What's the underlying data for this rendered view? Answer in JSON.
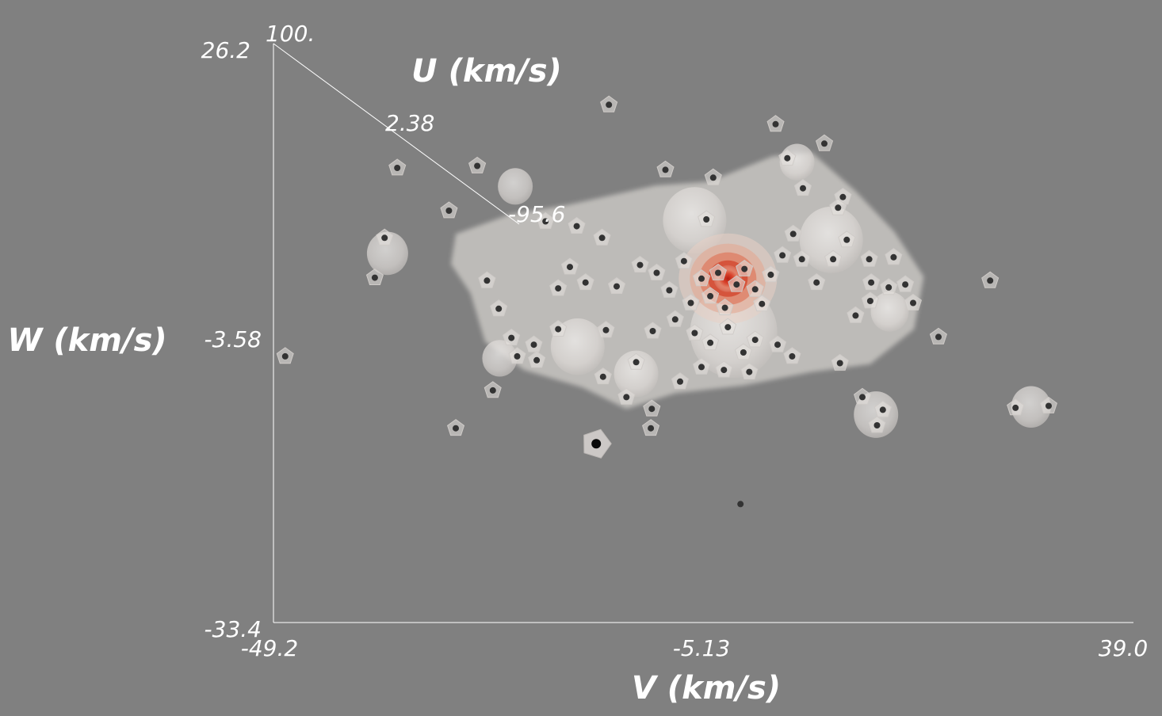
{
  "chart_data": {
    "type": "scatter",
    "subtype": "3d-scatter-with-density-isosurfaces",
    "xlabel": "V (km/s)",
    "ylabel": "W (km/s)",
    "zlabel": "U (km/s)",
    "x_ticks": [
      "-49.2",
      "-5.13",
      "39.0"
    ],
    "y_ticks": [
      "26.2",
      "-3.58",
      "-33.4"
    ],
    "z_ticks": [
      "100.",
      "2.38",
      "-95.6"
    ],
    "xlim": [
      -49.2,
      39.0
    ],
    "ylim": [
      -33.4,
      26.2
    ],
    "zlim": [
      -95.6,
      100
    ],
    "grid": false,
    "colors": {
      "background": "#808080",
      "axes": "#ffffff",
      "points": "#333333",
      "isosurface_outer": "#e6e2de",
      "isosurface_core": "#d23a25"
    },
    "density_peak": {
      "x": -2.6,
      "y": 2.0
    },
    "points": [
      {
        "x": -36.5,
        "y": 13.4
      },
      {
        "x": -28.3,
        "y": 13.6
      },
      {
        "x": -14.8,
        "y": 19.9
      },
      {
        "x": -9.0,
        "y": 13.2
      },
      {
        "x": -4.1,
        "y": 12.4
      },
      {
        "x": 2.3,
        "y": 17.9
      },
      {
        "x": 7.3,
        "y": 15.9
      },
      {
        "x": 5.1,
        "y": 11.3
      },
      {
        "x": 9.2,
        "y": 10.4
      },
      {
        "x": 8.7,
        "y": 9.3
      },
      {
        "x": -37.8,
        "y": 6.2
      },
      {
        "x": -38.8,
        "y": 2.1
      },
      {
        "x": -31.2,
        "y": 9.0
      },
      {
        "x": -21.3,
        "y": 7.9
      },
      {
        "x": -18.1,
        "y": 7.4
      },
      {
        "x": -15.5,
        "y": 6.2
      },
      {
        "x": -20.0,
        "y": 1.0
      },
      {
        "x": -18.8,
        "y": 3.2
      },
      {
        "x": -17.2,
        "y": 1.6
      },
      {
        "x": -14.0,
        "y": 1.2
      },
      {
        "x": -11.6,
        "y": 3.4
      },
      {
        "x": -9.9,
        "y": 2.6
      },
      {
        "x": -8.6,
        "y": 0.8
      },
      {
        "x": -7.1,
        "y": 3.8
      },
      {
        "x": -6.4,
        "y": -0.5
      },
      {
        "x": -5.3,
        "y": 2.0
      },
      {
        "x": -4.4,
        "y": 0.2
      },
      {
        "x": -3.6,
        "y": 2.6
      },
      {
        "x": -2.9,
        "y": -1.0
      },
      {
        "x": -1.7,
        "y": 1.4
      },
      {
        "x": -0.9,
        "y": 3.0
      },
      {
        "x": 0.2,
        "y": 0.9
      },
      {
        "x": 0.9,
        "y": -0.6
      },
      {
        "x": 1.8,
        "y": 2.4
      },
      {
        "x": 3.0,
        "y": 4.4
      },
      {
        "x": 4.1,
        "y": 6.6
      },
      {
        "x": 5.0,
        "y": 4.0
      },
      {
        "x": 6.5,
        "y": 1.6
      },
      {
        "x": 8.2,
        "y": 4.0
      },
      {
        "x": 9.6,
        "y": 6.0
      },
      {
        "x": 11.9,
        "y": 4.0
      },
      {
        "x": 13.9,
        "y": 1.1
      },
      {
        "x": 14.4,
        "y": 4.2
      },
      {
        "x": 16.4,
        "y": -0.5
      },
      {
        "x": 12.0,
        "y": -0.3
      },
      {
        "x": 10.5,
        "y": -1.8
      },
      {
        "x": 15.6,
        "y": 1.4
      },
      {
        "x": -10.3,
        "y": -3.4
      },
      {
        "x": -8.0,
        "y": -2.2
      },
      {
        "x": -6.0,
        "y": -3.6
      },
      {
        "x": -4.4,
        "y": -4.6
      },
      {
        "x": -2.6,
        "y": -3.0
      },
      {
        "x": -1.0,
        "y": -5.6
      },
      {
        "x": 0.2,
        "y": -4.3
      },
      {
        "x": 2.5,
        "y": -4.8
      },
      {
        "x": 4.0,
        "y": -6.0
      },
      {
        "x": -15.1,
        "y": -3.3
      },
      {
        "x": -20.0,
        "y": -3.2
      },
      {
        "x": -22.5,
        "y": -4.8
      },
      {
        "x": -24.8,
        "y": -4.1
      },
      {
        "x": -26.1,
        "y": -1.1
      },
      {
        "x": -27.3,
        "y": 1.8
      },
      {
        "x": -22.2,
        "y": -6.4
      },
      {
        "x": -15.4,
        "y": -8.1
      },
      {
        "x": -12.0,
        "y": -6.6
      },
      {
        "x": -7.5,
        "y": -8.6
      },
      {
        "x": -5.3,
        "y": -7.1
      },
      {
        "x": -3.0,
        "y": -7.4
      },
      {
        "x": -0.4,
        "y": -7.6
      },
      {
        "x": 8.9,
        "y": -6.7
      },
      {
        "x": 12.1,
        "y": 1.6
      },
      {
        "x": 11.2,
        "y": -10.2
      },
      {
        "x": 13.3,
        "y": -11.5
      },
      {
        "x": 12.7,
        "y": -13.1
      },
      {
        "x": -13.0,
        "y": -10.2
      },
      {
        "x": -10.4,
        "y": -11.4
      },
      {
        "x": -24.2,
        "y": -6.0
      },
      {
        "x": -10.5,
        "y": -13.4
      },
      {
        "x": -48.0,
        "y": -6.0
      },
      {
        "x": -30.5,
        "y": -13.4
      },
      {
        "x": 19.0,
        "y": -4.0
      },
      {
        "x": 24.3,
        "y": 1.8
      },
      {
        "x": 26.9,
        "y": -11.3
      },
      {
        "x": 30.3,
        "y": -11.1
      },
      {
        "x": -4.8,
        "y": 8.1
      },
      {
        "x": 3.5,
        "y": 14.4
      },
      {
        "x": -26.7,
        "y": -9.5
      }
    ],
    "highlight_point": {
      "x": -16.1,
      "y": -15.0
    },
    "outlier_points": [
      {
        "x": -1.3,
        "y": -21.2
      }
    ]
  }
}
